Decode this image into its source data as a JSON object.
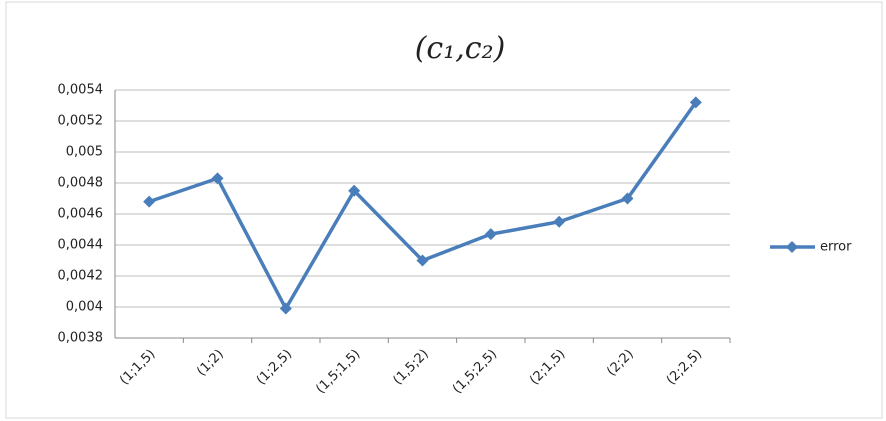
{
  "chart_data": {
    "type": "line",
    "title": "(c₁,c₂)",
    "categories": [
      "(1;1,5)",
      "(1;2)",
      "(1;2,5)",
      "(1,5;1,5)",
      "(1,5;2)",
      "(1,5;2,5)",
      "(2;1,5)",
      "(2;2)",
      "(2;2,5)"
    ],
    "series": [
      {
        "name": "error",
        "color": "#4a7ebb",
        "values": [
          0.00468,
          0.00483,
          0.00399,
          0.00475,
          0.0043,
          0.00447,
          0.00455,
          0.0047,
          0.00532
        ]
      }
    ],
    "ylim": [
      0.0038,
      0.0054
    ],
    "yticks": [
      {
        "value": 0.0038,
        "label": "0,0038"
      },
      {
        "value": 0.004,
        "label": "0,004"
      },
      {
        "value": 0.0042,
        "label": "0,0042"
      },
      {
        "value": 0.0044,
        "label": "0,0044"
      },
      {
        "value": 0.0046,
        "label": "0,0046"
      },
      {
        "value": 0.0048,
        "label": "0,0048"
      },
      {
        "value": 0.005,
        "label": "0,005"
      },
      {
        "value": 0.0052,
        "label": "0,0052"
      },
      {
        "value": 0.0054,
        "label": "0,0054"
      }
    ],
    "grid": true,
    "legend": "right"
  }
}
